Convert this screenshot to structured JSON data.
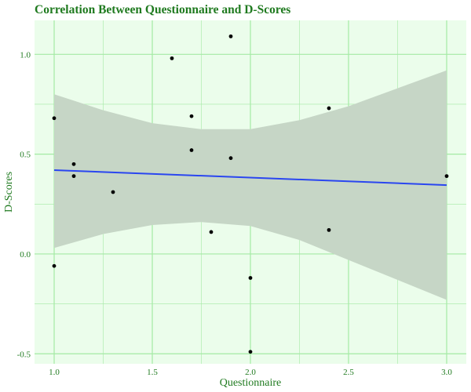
{
  "chart_data": {
    "type": "scatter",
    "title": "Correlation Between Questionnaire and D-Scores",
    "xlabel": "Questionnaire",
    "ylabel": "D-Scores",
    "xlim": [
      0.9,
      3.1
    ],
    "ylim": [
      -0.55,
      1.17
    ],
    "x_ticks": [
      {
        "value": 1.0,
        "label": "1.0"
      },
      {
        "value": 1.5,
        "label": "1.5"
      },
      {
        "value": 2.0,
        "label": "2.0"
      },
      {
        "value": 2.5,
        "label": "2.5"
      },
      {
        "value": 3.0,
        "label": "3.0"
      }
    ],
    "y_ticks": [
      {
        "value": -0.5,
        "label": "-0.5"
      },
      {
        "value": 0.0,
        "label": "0.0"
      },
      {
        "value": 0.5,
        "label": "0.5"
      },
      {
        "value": 1.0,
        "label": "1.0"
      }
    ],
    "grid": true,
    "legend": "none",
    "points": [
      {
        "x": 1.0,
        "y": 0.68
      },
      {
        "x": 1.0,
        "y": -0.06
      },
      {
        "x": 1.1,
        "y": 0.45
      },
      {
        "x": 1.1,
        "y": 0.39
      },
      {
        "x": 1.3,
        "y": 0.31
      },
      {
        "x": 1.6,
        "y": 0.98
      },
      {
        "x": 1.7,
        "y": 0.69
      },
      {
        "x": 1.7,
        "y": 0.52
      },
      {
        "x": 1.8,
        "y": 0.11
      },
      {
        "x": 1.9,
        "y": 1.09
      },
      {
        "x": 1.9,
        "y": 0.48
      },
      {
        "x": 2.0,
        "y": -0.12
      },
      {
        "x": 2.0,
        "y": -0.49
      },
      {
        "x": 2.4,
        "y": 0.73
      },
      {
        "x": 2.4,
        "y": 0.12
      },
      {
        "x": 3.0,
        "y": 0.39
      }
    ],
    "fit_line": {
      "x": [
        1.0,
        3.0
      ],
      "y": [
        0.42,
        0.345
      ]
    },
    "confidence_band": [
      {
        "x": 1.0,
        "lower": 0.03,
        "upper": 0.8
      },
      {
        "x": 1.25,
        "lower": 0.1,
        "upper": 0.72
      },
      {
        "x": 1.5,
        "lower": 0.145,
        "upper": 0.655
      },
      {
        "x": 1.75,
        "lower": 0.16,
        "upper": 0.625
      },
      {
        "x": 2.0,
        "lower": 0.14,
        "upper": 0.625
      },
      {
        "x": 2.25,
        "lower": 0.07,
        "upper": 0.67
      },
      {
        "x": 2.5,
        "lower": -0.03,
        "upper": 0.74
      },
      {
        "x": 2.75,
        "lower": -0.13,
        "upper": 0.83
      },
      {
        "x": 3.0,
        "lower": -0.23,
        "upper": 0.92
      }
    ],
    "colors": {
      "panel_background": "#ebfdeb",
      "grid": "#a4eaa4",
      "band": "#c6d6c6",
      "fit_line": "#2a46f0",
      "points": "#000000",
      "title": "#1f7a1f",
      "axis_text": "#1f7a1f"
    }
  }
}
